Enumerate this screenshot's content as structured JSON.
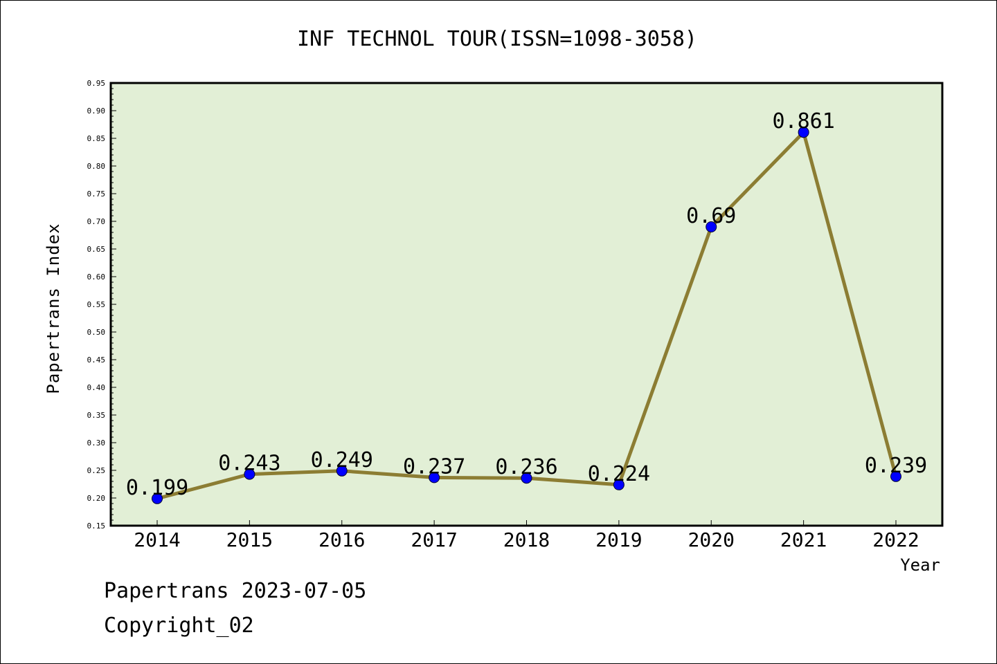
{
  "chart_data": {
    "type": "line",
    "title": "INF TECHNOL TOUR(ISSN=1098-3058)",
    "xlabel": "Year",
    "ylabel": "Papertrans Index",
    "categories": [
      "2014",
      "2015",
      "2016",
      "2017",
      "2018",
      "2019",
      "2020",
      "2021",
      "2022"
    ],
    "values": [
      0.199,
      0.243,
      0.249,
      0.237,
      0.236,
      0.224,
      0.69,
      0.861,
      0.239
    ],
    "data_labels": [
      "0.199",
      "0.243",
      "0.249",
      "0.237",
      "0.236",
      "0.224",
      "0.69",
      "0.861",
      "0.239"
    ],
    "ylim": [
      0.15,
      0.95
    ],
    "yticks": [
      "0.15",
      "0.20",
      "0.25",
      "0.30",
      "0.35",
      "0.40",
      "0.45",
      "0.50",
      "0.55",
      "0.60",
      "0.65",
      "0.70",
      "0.75",
      "0.80",
      "0.85",
      "0.90",
      "0.95"
    ],
    "grid": false,
    "colors": {
      "plot_bg": "#e2efd6",
      "line": "#8c7d33",
      "marker": "#0000ff"
    }
  },
  "footer": {
    "line1": "Papertrans 2023-07-05",
    "line2": "Copyright_02"
  }
}
